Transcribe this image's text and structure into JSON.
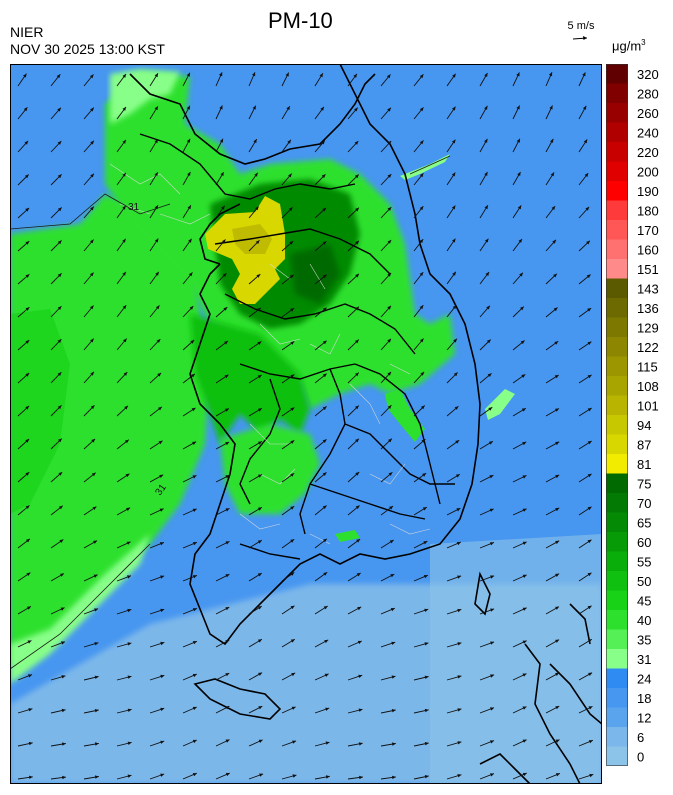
{
  "header": {
    "title": "PM-10",
    "organization": "NIER",
    "timestamp": "NOV 30 2025 13:00 KST",
    "wind_scale_label": "5 m/s",
    "unit_label": "μg/m",
    "unit_exponent": "3"
  },
  "map": {
    "contour_labels": [
      "31",
      "31"
    ],
    "wind_direction": "west-southwest to east-northeast"
  },
  "legend": {
    "levels": [
      "0",
      "6",
      "12",
      "18",
      "24",
      "31",
      "35",
      "40",
      "45",
      "50",
      "55",
      "60",
      "65",
      "70",
      "75",
      "81",
      "87",
      "94",
      "101",
      "108",
      "115",
      "122",
      "129",
      "136",
      "143",
      "151",
      "160",
      "170",
      "180",
      "190",
      "200",
      "220",
      "240",
      "260",
      "280",
      "320"
    ],
    "colors": [
      "#8cc3e8",
      "#7bb7ea",
      "#5aa4ee",
      "#4796f0",
      "#2f8bf2",
      "#88ff88",
      "#55f055",
      "#2de02d",
      "#18d218",
      "#10c010",
      "#0aae0a",
      "#079c07",
      "#058a05",
      "#037a03",
      "#016a01",
      "#f2ec00",
      "#d8d800",
      "#c8c800",
      "#b8b400",
      "#a8a400",
      "#9c9600",
      "#8c8600",
      "#7c7800",
      "#6c6a00",
      "#5c5a00",
      "#ff8a8a",
      "#ff7070",
      "#ff5656",
      "#ff3a3a",
      "#ff0000",
      "#e00000",
      "#c80000",
      "#b00000",
      "#980000",
      "#800000",
      "#600000"
    ]
  }
}
